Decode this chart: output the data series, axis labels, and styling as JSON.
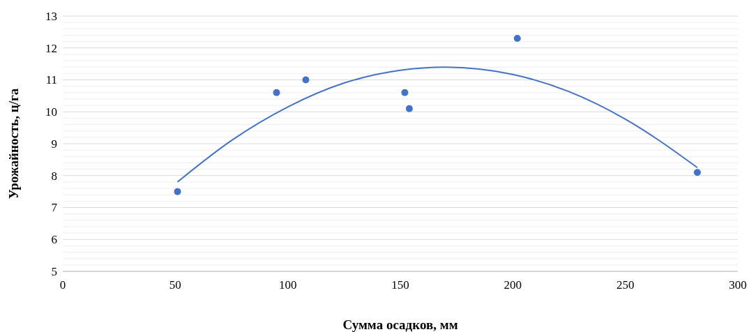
{
  "chart_data": {
    "type": "scatter",
    "xlabel": "Сумма осадков, мм",
    "ylabel": "Урожайность, ц/га",
    "xlim": [
      0,
      300
    ],
    "xticks": [
      0,
      50,
      100,
      150,
      200,
      250,
      300
    ],
    "ylim": [
      5,
      13
    ],
    "yticks": [
      5,
      {
        "value": 5.2,
        "label": null
      },
      {
        "value": 5.4,
        "label": null
      },
      {
        "value": 5.6,
        "label": null
      },
      {
        "value": 5.8,
        "label": null
      },
      6,
      {
        "value": 6.2,
        "label": null
      },
      {
        "value": 6.4,
        "label": null
      },
      {
        "value": 6.6,
        "label": null
      },
      {
        "value": 6.8,
        "label": null
      },
      7,
      {
        "value": 7.2,
        "label": null
      },
      {
        "value": 7.4,
        "label": null
      },
      {
        "value": 7.6,
        "label": null
      },
      {
        "value": 7.8,
        "label": null
      },
      8,
      {
        "value": 8.2,
        "label": null
      },
      {
        "value": 8.4,
        "label": null
      },
      {
        "value": 8.6,
        "label": null
      },
      {
        "value": 8.8,
        "label": null
      },
      9,
      {
        "value": 9.2,
        "label": null
      },
      {
        "value": 9.4,
        "label": null
      },
      {
        "value": 9.6,
        "label": null
      },
      {
        "value": 9.8,
        "label": null
      },
      10,
      {
        "value": 10.2,
        "label": null
      },
      {
        "value": 10.4,
        "label": null
      },
      {
        "value": 10.6,
        "label": null
      },
      {
        "value": 10.8,
        "label": null
      },
      11,
      {
        "value": 11.2,
        "label": null
      },
      {
        "value": 11.4,
        "label": null
      },
      {
        "value": 11.6,
        "label": null
      },
      {
        "value": 11.8,
        "label": null
      },
      12,
      {
        "value": 12.2,
        "label": null
      },
      {
        "value": 12.4,
        "label": null
      },
      {
        "value": 12.6,
        "label": null
      },
      {
        "value": 12.8,
        "label": null
      },
      13
    ],
    "grid": "y",
    "marker": "circle",
    "series": [
      {
        "color": "#4472c4",
        "x": [
          51,
          95,
          108,
          152,
          154,
          202,
          282
        ],
        "values": [
          7.5,
          10.6,
          11.0,
          10.6,
          10.1,
          12.3,
          8.1
        ]
      },
      {
        "type": "line",
        "color": "#4472c4",
        "line_style": "solid",
        "marker": "none",
        "x": [
          51,
          75,
          100,
          125,
          150,
          170,
          200,
          225,
          250,
          282
        ],
        "values": [
          7.8,
          9.1,
          10.15,
          10.9,
          11.3,
          11.4,
          11.17,
          10.63,
          9.77,
          8.25
        ]
      }
    ]
  }
}
